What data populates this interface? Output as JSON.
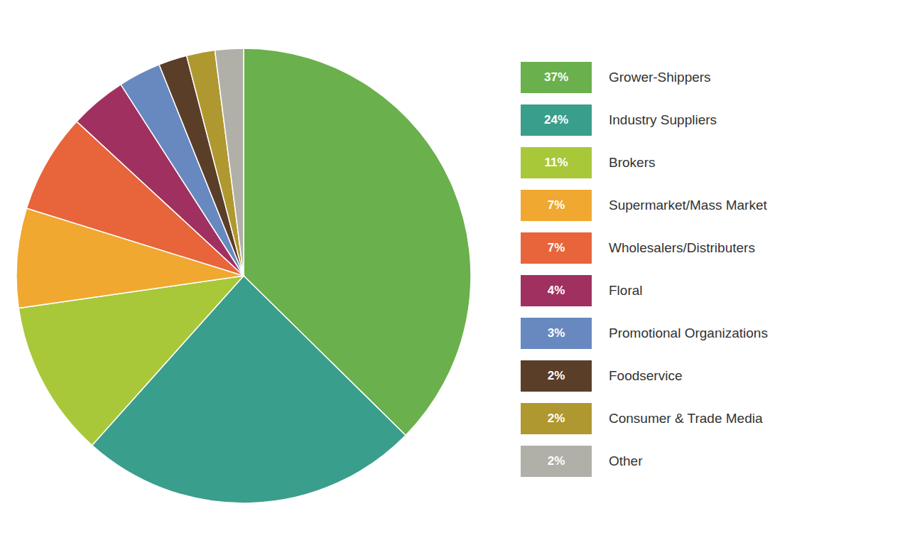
{
  "chart_data": {
    "type": "pie",
    "categories": [
      "Grower-Shippers",
      "Industry Suppliers",
      "Brokers",
      "Supermarket/Mass Market",
      "Wholesalers/Distributers",
      "Floral",
      "Promotional Organizations",
      "Foodservice",
      "Consumer & Trade Media",
      "Other"
    ],
    "values": [
      37,
      24,
      11,
      7,
      7,
      4,
      3,
      2,
      2,
      2
    ],
    "value_labels": [
      "37%",
      "24%",
      "11%",
      "7%",
      "7%",
      "4%",
      "3%",
      "2%",
      "2%",
      "2%"
    ],
    "colors": [
      "#6ab04c",
      "#3a9e8c",
      "#a8c83a",
      "#f0a830",
      "#e8643a",
      "#a03060",
      "#6888c0",
      "#5a3e28",
      "#b09830",
      "#b0b0a8"
    ],
    "legend": "right"
  }
}
